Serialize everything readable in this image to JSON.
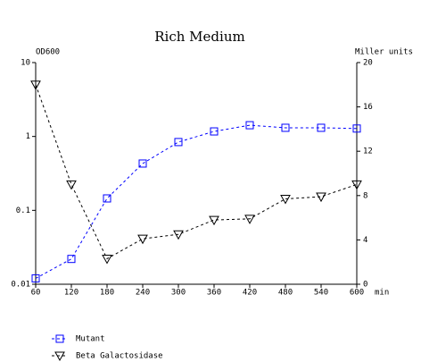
{
  "chart_data": {
    "type": "line",
    "title": "Rich Medium",
    "y_label": "OD600",
    "y2_label": "Miller units",
    "x_label": "min",
    "x": [
      60,
      120,
      180,
      240,
      300,
      360,
      420,
      480,
      540,
      600
    ],
    "xlim": [
      60,
      600
    ],
    "xticks": [
      60,
      120,
      180,
      240,
      300,
      360,
      420,
      480,
      540,
      600
    ],
    "ylim": [
      0.01,
      10
    ],
    "yticks": [
      0.01,
      0.1,
      1,
      10
    ],
    "ylog": true,
    "y2lim": [
      0,
      20
    ],
    "y2ticks": [
      0,
      4,
      8,
      12,
      16,
      20
    ],
    "series": [
      {
        "name": "Mutant",
        "color": "#0000ff",
        "marker": "square",
        "values": [
          0.012,
          0.022,
          0.145,
          0.43,
          0.84,
          1.17,
          1.42,
          1.31,
          1.31,
          1.28
        ]
      },
      {
        "name": "Beta Galactosidase",
        "color": "#000000",
        "marker": "triangle-down",
        "axis": "y2",
        "values": [
          18.0,
          9.0,
          2.3,
          4.1,
          4.5,
          5.8,
          5.9,
          7.7,
          7.9,
          9.0
        ]
      }
    ]
  }
}
